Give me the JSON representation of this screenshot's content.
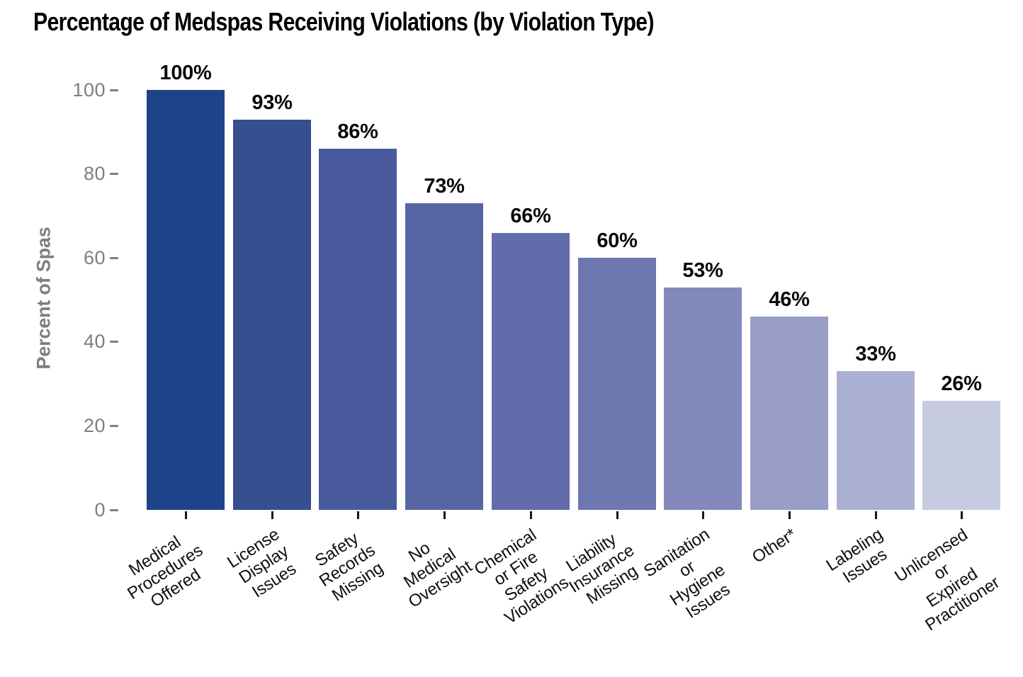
{
  "chart_data": {
    "type": "bar",
    "title": "Percentage of Medspas Receiving Violations (by Violation Type)",
    "ylabel": "Percent of Spas",
    "xlabel": "",
    "unit": "%",
    "ylim": [
      0,
      100
    ],
    "yticks": [
      0,
      20,
      40,
      60,
      80,
      100
    ],
    "grid": false,
    "legend": false,
    "categories": [
      "Medical\nProcedures Offered",
      "License\nDisplay Issues",
      "Safety\nRecords Missing",
      "No Medical\nOversight",
      "Chemical or Fire\nSafety Violations",
      "Liability\nInsurance Missing",
      "Sanitation or\nHygiene Issues",
      "Other*",
      "Labeling Issues",
      "Unlicensed or\nExpired Practitioner"
    ],
    "values": [
      100,
      93,
      86,
      73,
      66,
      60,
      53,
      46,
      33,
      26
    ],
    "value_labels": [
      "100%",
      "93%",
      "86%",
      "73%",
      "66%",
      "60%",
      "53%",
      "46%",
      "33%",
      "26%"
    ],
    "bar_colors": [
      "#1E4389",
      "#36508F",
      "#485A9B",
      "#5765A3",
      "#626CAA",
      "#6D77B0",
      "#8389BB",
      "#989EC8",
      "#AAB0D2",
      "#C7CBE0"
    ],
    "title_color": "#000000",
    "axis_text_color": "#7C7E82",
    "value_label_color": "#0A0A0A",
    "category_label_color": "#101010"
  }
}
